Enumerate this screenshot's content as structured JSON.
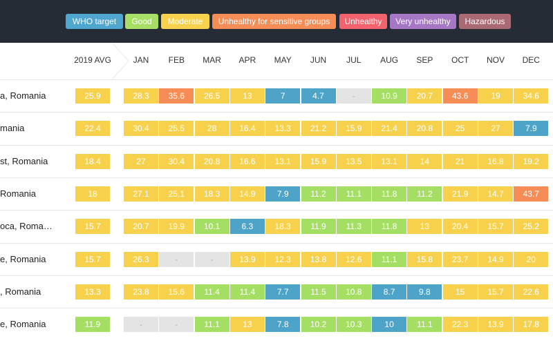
{
  "legend": [
    {
      "label": "WHO target",
      "color": "#4fa6cf",
      "text_color": "#ffffff"
    },
    {
      "label": "Good",
      "color": "#a7df66",
      "text_color": "#ffffff"
    },
    {
      "label": "Moderate",
      "color": "#f9d24d",
      "text_color": "#ffffff"
    },
    {
      "label": "Unhealthy for sensitive groups",
      "color": "#f68d56",
      "text_color": "#ffffff"
    },
    {
      "label": "Unhealthy",
      "color": "#f4636d",
      "text_color": "#ffffff"
    },
    {
      "label": "Very unhealthy",
      "color": "#a677c4",
      "text_color": "#ffffff"
    },
    {
      "label": "Hazardous",
      "color": "#a96a73",
      "text_color": "#ffffff"
    }
  ],
  "columns": {
    "avg": "2019 AVG",
    "months": [
      "JAN",
      "FEB",
      "MAR",
      "APR",
      "MAY",
      "JUN",
      "JUL",
      "AUG",
      "SEP",
      "OCT",
      "NOV",
      "DEC"
    ]
  },
  "rows": [
    {
      "city": "a, Romania",
      "avg": {
        "v": "25.9",
        "c": "y"
      },
      "m": [
        {
          "v": "28.3",
          "c": "y"
        },
        {
          "v": "35.6",
          "c": "o"
        },
        {
          "v": "26.5",
          "c": "y"
        },
        {
          "v": "13",
          "c": "y"
        },
        {
          "v": "7",
          "c": "b"
        },
        {
          "v": "4.7",
          "c": "b"
        },
        {
          "v": "-",
          "c": "n"
        },
        {
          "v": "10.9",
          "c": "g"
        },
        {
          "v": "20.7",
          "c": "y"
        },
        {
          "v": "43.6",
          "c": "o"
        },
        {
          "v": "19",
          "c": "y"
        },
        {
          "v": "34.6",
          "c": "y"
        }
      ]
    },
    {
      "city": "mania",
      "avg": {
        "v": "22.4",
        "c": "y"
      },
      "m": [
        {
          "v": "30.4",
          "c": "y"
        },
        {
          "v": "25.5",
          "c": "y"
        },
        {
          "v": "28",
          "c": "y"
        },
        {
          "v": "16.4",
          "c": "y"
        },
        {
          "v": "13.3",
          "c": "y"
        },
        {
          "v": "21.2",
          "c": "y"
        },
        {
          "v": "15.9",
          "c": "y"
        },
        {
          "v": "21.4",
          "c": "y"
        },
        {
          "v": "20.8",
          "c": "y"
        },
        {
          "v": "25",
          "c": "y"
        },
        {
          "v": "27",
          "c": "y"
        },
        {
          "v": "7.9",
          "c": "b"
        }
      ]
    },
    {
      "city": "st, Romania",
      "avg": {
        "v": "18.4",
        "c": "y"
      },
      "m": [
        {
          "v": "27",
          "c": "y"
        },
        {
          "v": "30.4",
          "c": "y"
        },
        {
          "v": "20.8",
          "c": "y"
        },
        {
          "v": "16.6",
          "c": "y"
        },
        {
          "v": "13.1",
          "c": "y"
        },
        {
          "v": "15.9",
          "c": "y"
        },
        {
          "v": "13.5",
          "c": "y"
        },
        {
          "v": "13.1",
          "c": "y"
        },
        {
          "v": "14",
          "c": "y"
        },
        {
          "v": "21",
          "c": "y"
        },
        {
          "v": "16.8",
          "c": "y"
        },
        {
          "v": "19.2",
          "c": "y"
        }
      ]
    },
    {
      "city": "Romania",
      "avg": {
        "v": "18",
        "c": "y"
      },
      "m": [
        {
          "v": "27.1",
          "c": "y"
        },
        {
          "v": "25.1",
          "c": "y"
        },
        {
          "v": "18.3",
          "c": "y"
        },
        {
          "v": "14.9",
          "c": "y"
        },
        {
          "v": "7.9",
          "c": "b"
        },
        {
          "v": "11.2",
          "c": "g"
        },
        {
          "v": "11.1",
          "c": "g"
        },
        {
          "v": "11.8",
          "c": "g"
        },
        {
          "v": "11.2",
          "c": "g"
        },
        {
          "v": "21.9",
          "c": "y"
        },
        {
          "v": "14.7",
          "c": "y"
        },
        {
          "v": "43.7",
          "c": "o"
        }
      ]
    },
    {
      "city": "oca, Roma…",
      "avg": {
        "v": "15.7",
        "c": "y"
      },
      "m": [
        {
          "v": "20.7",
          "c": "y"
        },
        {
          "v": "19.9",
          "c": "y"
        },
        {
          "v": "10.1",
          "c": "g"
        },
        {
          "v": "6.3",
          "c": "b"
        },
        {
          "v": "18.3",
          "c": "y"
        },
        {
          "v": "11.9",
          "c": "g"
        },
        {
          "v": "11.3",
          "c": "g"
        },
        {
          "v": "11.8",
          "c": "g"
        },
        {
          "v": "13",
          "c": "y"
        },
        {
          "v": "20.4",
          "c": "y"
        },
        {
          "v": "15.7",
          "c": "y"
        },
        {
          "v": "25.2",
          "c": "y"
        }
      ]
    },
    {
      "city": "e, Romania",
      "avg": {
        "v": "15.7",
        "c": "y"
      },
      "m": [
        {
          "v": "26.3",
          "c": "y"
        },
        {
          "v": "-",
          "c": "n"
        },
        {
          "v": "-",
          "c": "n"
        },
        {
          "v": "13.9",
          "c": "y"
        },
        {
          "v": "12.3",
          "c": "y"
        },
        {
          "v": "13.8",
          "c": "y"
        },
        {
          "v": "12.6",
          "c": "y"
        },
        {
          "v": "11.1",
          "c": "g"
        },
        {
          "v": "15.8",
          "c": "y"
        },
        {
          "v": "23.7",
          "c": "y"
        },
        {
          "v": "14.9",
          "c": "y"
        },
        {
          "v": "20",
          "c": "y"
        }
      ]
    },
    {
      "city": ", Romania",
      "avg": {
        "v": "13.3",
        "c": "y"
      },
      "m": [
        {
          "v": "23.8",
          "c": "y"
        },
        {
          "v": "15.6",
          "c": "y"
        },
        {
          "v": "11.4",
          "c": "g"
        },
        {
          "v": "11.4",
          "c": "g"
        },
        {
          "v": "7.7",
          "c": "b"
        },
        {
          "v": "11.5",
          "c": "g"
        },
        {
          "v": "10.8",
          "c": "g"
        },
        {
          "v": "8.7",
          "c": "b"
        },
        {
          "v": "9.8",
          "c": "b"
        },
        {
          "v": "15",
          "c": "y"
        },
        {
          "v": "15.7",
          "c": "y"
        },
        {
          "v": "22.6",
          "c": "y"
        }
      ]
    },
    {
      "city": "e, Romania",
      "avg": {
        "v": "11.9",
        "c": "g"
      },
      "m": [
        {
          "v": "-",
          "c": "n"
        },
        {
          "v": "-",
          "c": "n"
        },
        {
          "v": "11.1",
          "c": "g"
        },
        {
          "v": "13",
          "c": "y"
        },
        {
          "v": "7.8",
          "c": "b"
        },
        {
          "v": "10.2",
          "c": "g"
        },
        {
          "v": "10.3",
          "c": "g"
        },
        {
          "v": "10",
          "c": "b"
        },
        {
          "v": "11.1",
          "c": "g"
        },
        {
          "v": "22.3",
          "c": "y"
        },
        {
          "v": "13.9",
          "c": "y"
        },
        {
          "v": "17.8",
          "c": "y"
        }
      ]
    }
  ]
}
